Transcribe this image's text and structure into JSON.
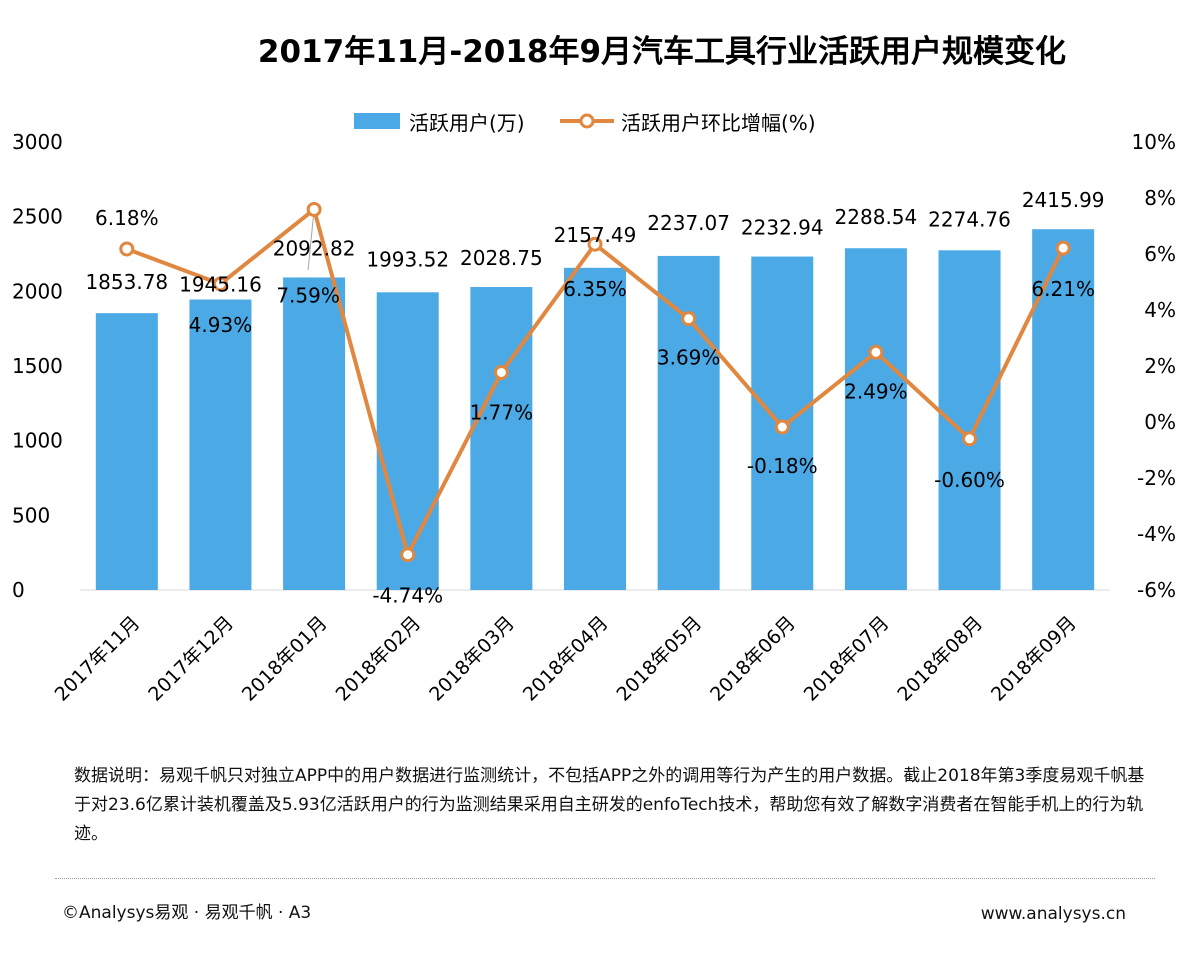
{
  "chart_data": {
    "type": "bar",
    "title": "2017年11月-2018年9月汽车工具行业活跃用户规模变化",
    "categories": [
      "2017年11月",
      "2017年12月",
      "2018年01月",
      "2018年02月",
      "2018年03月",
      "2018年04月",
      "2018年05月",
      "2018年06月",
      "2018年07月",
      "2018年08月",
      "2018年09月"
    ],
    "series": [
      {
        "name": "活跃用户(万)",
        "type": "bar",
        "axis": "left",
        "color": "#4ba9e6",
        "values": [
          1853.78,
          1945.16,
          2092.82,
          1993.52,
          2028.75,
          2157.49,
          2237.07,
          2232.94,
          2288.54,
          2274.76,
          2415.99
        ],
        "labels": [
          "1853.78",
          "1945.16",
          "2092.82",
          "1993.52",
          "2028.75",
          "2157.49",
          "2237.07",
          "2232.94",
          "2288.54",
          "2274.76",
          "2415.99"
        ]
      },
      {
        "name": "活跃用户环比增幅(%)",
        "type": "line",
        "axis": "right",
        "color": "#e08740",
        "values": [
          6.18,
          4.93,
          7.59,
          -4.74,
          1.77,
          6.35,
          3.69,
          -0.18,
          2.49,
          -0.6,
          6.21
        ],
        "labels": [
          "6.18%",
          "4.93%",
          "7.59%",
          "-4.74%",
          "1.77%",
          "6.35%",
          "3.69%",
          "-0.18%",
          "2.49%",
          "-0.60%",
          "6.21%"
        ]
      }
    ],
    "y_left": {
      "range": [
        0,
        3000
      ],
      "ticks": [
        "0",
        "500",
        "1000",
        "1500",
        "2000",
        "2500",
        "3000"
      ]
    },
    "y_right": {
      "range": [
        -6,
        10
      ],
      "ticks": [
        "-6%",
        "-4%",
        "-2%",
        "0%",
        "2%",
        "4%",
        "6%",
        "8%",
        "10%"
      ]
    },
    "grid": false,
    "legend_position": "top-center"
  },
  "footer": {
    "note": "数据说明：易观千帆只对独立APP中的用户数据进行监测统计，不包括APP之外的调用等行为产生的用户数据。截止2018年第3季度易观千帆基于对23.6亿累计装机覆盖及5.93亿活跃用户的行为监测结果采用自主研发的enfoTech技术，帮助您有效了解数字消费者在智能手机上的行为轨迹。",
    "copyright": "©Analysys易观 · 易观千帆 · A3",
    "website": "www.analysys.cn"
  }
}
